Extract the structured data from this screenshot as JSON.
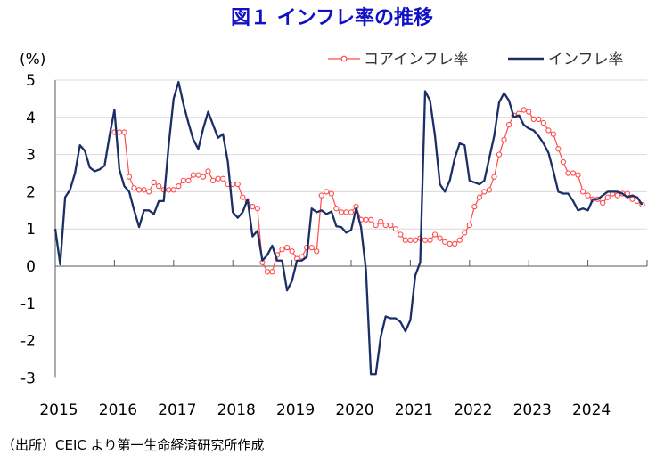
{
  "title": "図１ インフレ率の推移",
  "source": "（出所）CEIC より第一生命経済研究所作成",
  "chart_data": {
    "type": "line",
    "title": "図１ インフレ率の推移",
    "ylabel": "(%)",
    "xlabel": "",
    "ylim": [
      -3,
      5
    ],
    "yticks": [
      5,
      4,
      3,
      2,
      1,
      0,
      -1,
      -2,
      -3
    ],
    "xticks": [
      "2015",
      "2016",
      "2017",
      "2018",
      "2019",
      "2020",
      "2021",
      "2022",
      "2023",
      "2024"
    ],
    "x_start": "2015-01",
    "frequency": "monthly",
    "grid": true,
    "legend_position": "top-right",
    "colors": {
      "core": "#ff4a4a",
      "headline": "#1b2f66"
    },
    "series": [
      {
        "name": "コアインフレ率",
        "key": "core",
        "marker": "circle",
        "values": [
          null,
          null,
          null,
          null,
          null,
          null,
          null,
          null,
          null,
          null,
          null,
          null,
          3.6,
          3.6,
          3.6,
          2.4,
          2.1,
          2.05,
          2.05,
          2.0,
          2.25,
          2.15,
          2.05,
          2.05,
          2.05,
          2.15,
          2.3,
          2.3,
          2.45,
          2.45,
          2.4,
          2.55,
          2.3,
          2.35,
          2.35,
          2.2,
          2.2,
          2.2,
          1.85,
          1.75,
          1.6,
          1.55,
          0.1,
          -0.15,
          -0.15,
          0.3,
          0.45,
          0.5,
          0.4,
          0.2,
          0.25,
          0.5,
          0.5,
          0.4,
          1.9,
          2.0,
          1.95,
          1.55,
          1.45,
          1.45,
          1.45,
          1.6,
          1.25,
          1.25,
          1.25,
          1.1,
          1.2,
          1.1,
          1.1,
          1.0,
          0.85,
          0.7,
          0.7,
          0.7,
          0.75,
          0.7,
          0.7,
          0.85,
          0.75,
          0.65,
          0.6,
          0.6,
          0.7,
          0.9,
          1.1,
          1.6,
          1.85,
          2.0,
          2.05,
          2.4,
          3.0,
          3.4,
          3.8,
          4.05,
          4.1,
          4.2,
          4.15,
          3.95,
          3.95,
          3.85,
          3.65,
          3.55,
          3.15,
          2.8,
          2.5,
          2.5,
          2.45,
          2.0,
          1.9,
          1.8,
          1.8,
          1.7,
          1.85,
          1.95,
          1.9,
          1.95,
          1.95,
          1.8,
          1.75,
          1.65
        ]
      },
      {
        "name": "インフレ率",
        "key": "headline",
        "marker": "none",
        "values": [
          1.0,
          0.05,
          1.85,
          2.05,
          2.5,
          3.25,
          3.1,
          2.65,
          2.55,
          2.6,
          2.7,
          3.5,
          4.2,
          2.6,
          2.15,
          2.0,
          1.5,
          1.05,
          1.5,
          1.5,
          1.4,
          1.75,
          1.75,
          3.25,
          4.5,
          4.95,
          4.35,
          3.85,
          3.4,
          3.15,
          3.7,
          4.15,
          3.8,
          3.45,
          3.55,
          2.8,
          1.45,
          1.3,
          1.45,
          1.8,
          0.8,
          0.95,
          0.15,
          0.3,
          0.55,
          0.15,
          0.15,
          -0.65,
          -0.4,
          0.15,
          0.15,
          0.25,
          1.55,
          1.45,
          1.5,
          1.4,
          1.47,
          1.07,
          1.05,
          0.9,
          0.97,
          1.55,
          1.05,
          -0.1,
          -2.9,
          -2.9,
          -1.9,
          -1.35,
          -1.4,
          -1.4,
          -1.5,
          -1.75,
          -1.45,
          -0.25,
          0.1,
          4.7,
          4.45,
          3.5,
          2.2,
          2.0,
          2.3,
          2.9,
          3.3,
          3.25,
          2.3,
          2.25,
          2.2,
          2.3,
          2.9,
          3.5,
          4.4,
          4.65,
          4.45,
          4.0,
          4.05,
          3.8,
          3.7,
          3.65,
          3.5,
          3.3,
          3.05,
          2.55,
          2.0,
          1.95,
          1.95,
          1.75,
          1.5,
          1.55,
          1.5,
          1.8,
          1.8,
          1.9,
          2.0,
          2.0,
          2.0,
          1.95,
          1.85,
          1.9,
          1.85,
          1.65
        ]
      }
    ]
  }
}
